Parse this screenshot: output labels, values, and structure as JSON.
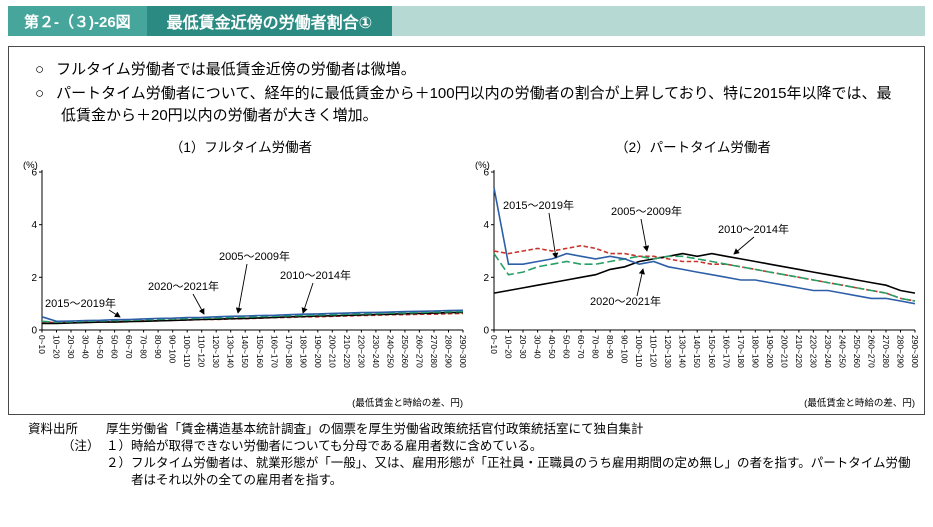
{
  "theme": {
    "header_bar": "#b7d9d3",
    "fig_box": "#47a69c",
    "title_box": "#2b8a81",
    "border": "#4a4a4a"
  },
  "header": {
    "fig_no": "第２-（３)-26図",
    "title": "最低賃金近傍の労働者割合①"
  },
  "bullets": [
    {
      "marker": "○",
      "text": "フルタイム労働者では最低賃金近傍の労働者は微増。"
    },
    {
      "marker": "○",
      "text": "パートタイム労働者について、経年的に最低賃金から＋100円以内の労働者の割合が上昇しており、特に2015年以降では、最低賃金から＋20円以内の労働者が大きく増加。"
    }
  ],
  "chart_data": [
    {
      "type": "line",
      "title": "（1）フルタイム労働者",
      "y_unit": "(%)",
      "x_unit": "(最低賃金と時給の差、円)",
      "ylim": [
        0,
        6
      ],
      "yticks": [
        0,
        2,
        4,
        6
      ],
      "grid": false,
      "legend_position": "inline-annotations",
      "categories": [
        "0~10",
        "10~20",
        "20~30",
        "30~40",
        "40~50",
        "50~60",
        "60~70",
        "70~80",
        "80~90",
        "90~100",
        "100~110",
        "110~120",
        "120~130",
        "130~140",
        "140~150",
        "150~160",
        "160~170",
        "170~180",
        "180~190",
        "190~200",
        "200~210",
        "210~220",
        "220~230",
        "230~240",
        "240~250",
        "250~260",
        "260~270",
        "270~280",
        "280~290",
        "290~300"
      ],
      "series": [
        {
          "name": "2005～2009年",
          "color": "#c9342c",
          "dash": "4.5 2.5",
          "values": [
            0.3,
            0.28,
            0.28,
            0.3,
            0.3,
            0.32,
            0.33,
            0.35,
            0.35,
            0.37,
            0.38,
            0.4,
            0.4,
            0.42,
            0.43,
            0.45,
            0.47,
            0.48,
            0.5,
            0.5,
            0.52,
            0.53,
            0.55,
            0.56,
            0.58,
            0.58,
            0.6,
            0.6,
            0.62,
            0.63
          ]
        },
        {
          "name": "2010～2014年",
          "color": "#000000",
          "dash": "",
          "values": [
            0.25,
            0.25,
            0.27,
            0.28,
            0.3,
            0.3,
            0.32,
            0.33,
            0.35,
            0.36,
            0.38,
            0.4,
            0.41,
            0.43,
            0.44,
            0.46,
            0.48,
            0.5,
            0.51,
            0.53,
            0.54,
            0.56,
            0.57,
            0.59,
            0.6,
            0.62,
            0.63,
            0.64,
            0.66,
            0.67
          ]
        },
        {
          "name": "2015～2019年",
          "color": "#27a065",
          "dash": "8 3.5",
          "values": [
            0.33,
            0.3,
            0.31,
            0.33,
            0.34,
            0.36,
            0.37,
            0.39,
            0.4,
            0.42,
            0.43,
            0.45,
            0.46,
            0.48,
            0.49,
            0.51,
            0.52,
            0.54,
            0.55,
            0.57,
            0.58,
            0.6,
            0.61,
            0.62,
            0.64,
            0.65,
            0.66,
            0.68,
            0.69,
            0.7
          ]
        },
        {
          "name": "2020～2021年",
          "color": "#2d5fa8",
          "dash": "",
          "values": [
            0.5,
            0.33,
            0.34,
            0.36,
            0.37,
            0.39,
            0.4,
            0.42,
            0.44,
            0.45,
            0.47,
            0.48,
            0.5,
            0.52,
            0.53,
            0.55,
            0.56,
            0.58,
            0.6,
            0.61,
            0.63,
            0.64,
            0.66,
            0.67,
            0.68,
            0.7,
            0.71,
            0.72,
            0.74,
            0.75
          ]
        }
      ],
      "annotations": [
        "2015～2019年",
        "2020～2021年",
        "2005～2009年",
        "2010～2014年"
      ]
    },
    {
      "type": "line",
      "title": "（2）パートタイム労働者",
      "y_unit": "(%)",
      "x_unit": "(最低賃金と時給の差、円)",
      "ylim": [
        0,
        6
      ],
      "yticks": [
        0,
        2,
        4,
        6
      ],
      "grid": false,
      "legend_position": "inline-annotations",
      "categories": [
        "0~10",
        "10~20",
        "20~30",
        "30~40",
        "40~50",
        "50~60",
        "60~70",
        "70~80",
        "80~90",
        "90~100",
        "100~110",
        "110~120",
        "120~130",
        "130~140",
        "140~150",
        "150~160",
        "160~170",
        "170~180",
        "180~190",
        "190~200",
        "200~210",
        "210~220",
        "220~230",
        "230~240",
        "240~250",
        "250~260",
        "260~270",
        "270~280",
        "280~290",
        "290~300"
      ],
      "series": [
        {
          "name": "2005～2009年",
          "color": "#c9342c",
          "dash": "4.5 2.5",
          "values": [
            3.0,
            2.9,
            3.0,
            3.1,
            3.0,
            3.1,
            3.2,
            3.1,
            2.9,
            2.9,
            2.8,
            2.8,
            2.7,
            2.6,
            2.6,
            2.5,
            2.5,
            2.4,
            2.3,
            2.2,
            2.1,
            2.0,
            1.9,
            1.8,
            1.7,
            1.6,
            1.5,
            1.4,
            1.2,
            1.1
          ]
        },
        {
          "name": "2010～2014年",
          "color": "#000000",
          "dash": "",
          "values": [
            1.4,
            1.5,
            1.6,
            1.7,
            1.8,
            1.9,
            2.0,
            2.1,
            2.3,
            2.4,
            2.6,
            2.7,
            2.8,
            2.9,
            2.8,
            2.9,
            2.8,
            2.7,
            2.6,
            2.5,
            2.4,
            2.3,
            2.2,
            2.1,
            2.0,
            1.9,
            1.8,
            1.7,
            1.5,
            1.4
          ]
        },
        {
          "name": "2015～2019年",
          "color": "#27a065",
          "dash": "8 3.5",
          "values": [
            2.9,
            2.1,
            2.2,
            2.4,
            2.5,
            2.6,
            2.5,
            2.5,
            2.6,
            2.7,
            2.8,
            2.7,
            2.8,
            2.8,
            2.7,
            2.6,
            2.5,
            2.4,
            2.3,
            2.2,
            2.1,
            2.0,
            1.9,
            1.8,
            1.7,
            1.6,
            1.5,
            1.4,
            1.2,
            1.1
          ]
        },
        {
          "name": "2020～2021年",
          "color": "#2d5fa8",
          "dash": "",
          "values": [
            5.4,
            2.5,
            2.5,
            2.6,
            2.7,
            2.9,
            2.8,
            2.7,
            2.8,
            2.7,
            2.5,
            2.6,
            2.4,
            2.3,
            2.2,
            2.1,
            2.0,
            1.9,
            1.9,
            1.8,
            1.7,
            1.6,
            1.5,
            1.5,
            1.4,
            1.3,
            1.2,
            1.2,
            1.1,
            1.0
          ]
        }
      ],
      "annotations": [
        "2015～2019年",
        "2005～2009年",
        "2010～2014年",
        "2020～2021年"
      ]
    }
  ],
  "footer": {
    "source_label": "資料出所",
    "source_text": "厚生労働省「賃金構造基本統計調査」の個票を厚生労働省政策統括官付政策統括室にて独自集計",
    "note_label": "（注）",
    "notes": [
      "１）時給が取得できない労働者についても分母である雇用者数に含めている。",
      "２）フルタイム労働者は、就業形態が「一般」、又は、雇用形態が「正社員・正職員のうち雇用期間の定め無し」の者を指す。パートタイム労働者はそれ以外の全ての雇用者を指す。"
    ]
  }
}
